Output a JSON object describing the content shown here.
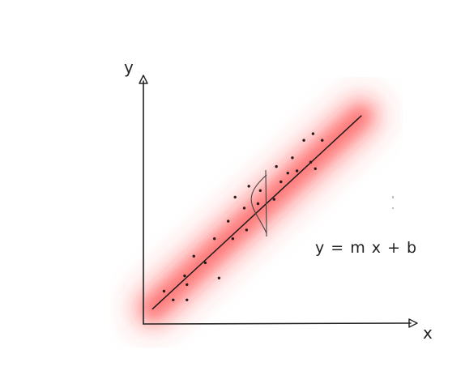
{
  "labels": {
    "y_axis": "y",
    "x_axis": "x",
    "equation": "y = m x + b"
  },
  "colors": {
    "ink": "#222222",
    "band": "#ff3b3b",
    "point": "#2a1a1a",
    "background": "#ffffff"
  },
  "chart_data": {
    "type": "scatter",
    "title": "",
    "xlabel": "x",
    "ylabel": "y",
    "xlim": [
      0,
      100
    ],
    "ylim": [
      0,
      100
    ],
    "grid": false,
    "regression_line": {
      "slope": 0.97,
      "intercept": 3.0
    },
    "points": [
      {
        "x": 9,
        "y": 15
      },
      {
        "x": 13,
        "y": 11
      },
      {
        "x": 18,
        "y": 22
      },
      {
        "x": 19,
        "y": 18
      },
      {
        "x": 19,
        "y": 11
      },
      {
        "x": 22,
        "y": 31
      },
      {
        "x": 27,
        "y": 28
      },
      {
        "x": 33,
        "y": 21
      },
      {
        "x": 31,
        "y": 39
      },
      {
        "x": 37,
        "y": 47
      },
      {
        "x": 39,
        "y": 39
      },
      {
        "x": 40,
        "y": 58
      },
      {
        "x": 44,
        "y": 53
      },
      {
        "x": 45,
        "y": 43
      },
      {
        "x": 46,
        "y": 63
      },
      {
        "x": 50,
        "y": 55
      },
      {
        "x": 51,
        "y": 61
      },
      {
        "x": 57,
        "y": 57
      },
      {
        "x": 58,
        "y": 72
      },
      {
        "x": 60,
        "y": 65
      },
      {
        "x": 63,
        "y": 69
      },
      {
        "x": 65,
        "y": 76
      },
      {
        "x": 67,
        "y": 70
      },
      {
        "x": 70,
        "y": 84
      },
      {
        "x": 73,
        "y": 74
      },
      {
        "x": 74,
        "y": 87
      },
      {
        "x": 75,
        "y": 71
      },
      {
        "x": 78,
        "y": 84
      }
    ]
  }
}
